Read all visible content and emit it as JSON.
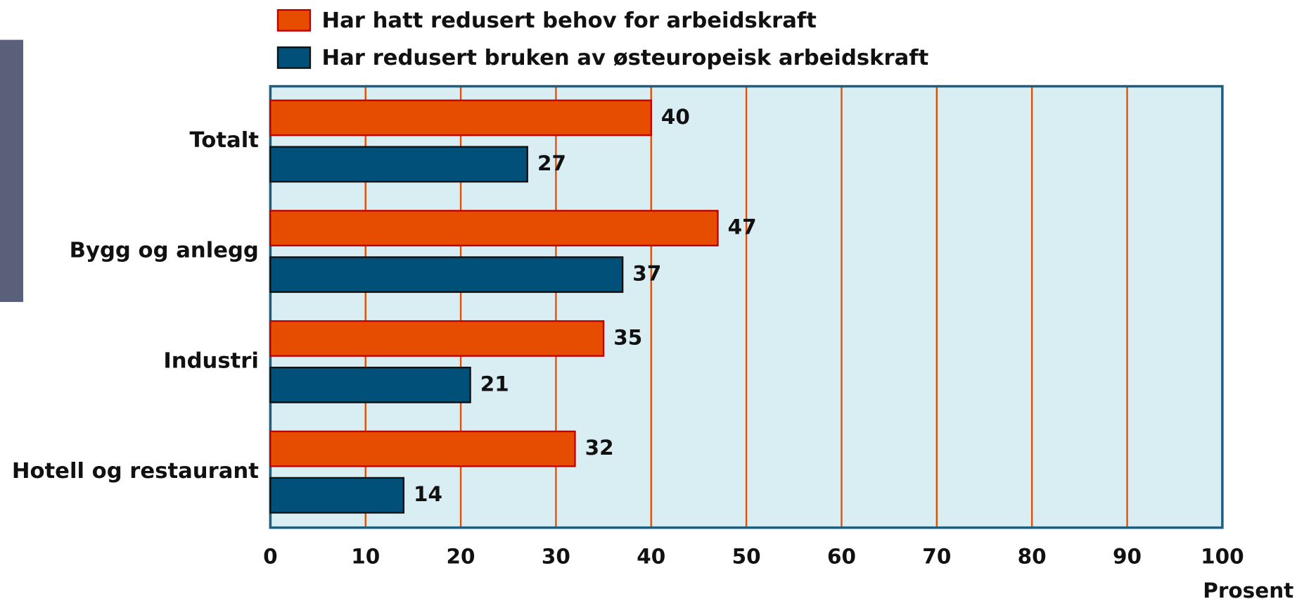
{
  "chart_data": {
    "type": "bar",
    "orientation": "horizontal",
    "categories": [
      "Totalt",
      "Bygg og anlegg",
      "Industri",
      "Hotell og restaurant"
    ],
    "series": [
      {
        "name": "Har hatt redusert behov for arbeidskraft",
        "color": "#e64d00",
        "values": [
          40,
          47,
          35,
          32
        ]
      },
      {
        "name": "Har redusert bruken av østeuropeisk arbeidskraft",
        "color": "#00507a",
        "values": [
          27,
          37,
          21,
          14
        ]
      }
    ],
    "xlabel": "Prosent",
    "xlim": [
      0,
      100
    ],
    "xticks": [
      0,
      10,
      20,
      30,
      40,
      50,
      60,
      70,
      80,
      90,
      100
    ],
    "grid": true,
    "legend": "top"
  }
}
